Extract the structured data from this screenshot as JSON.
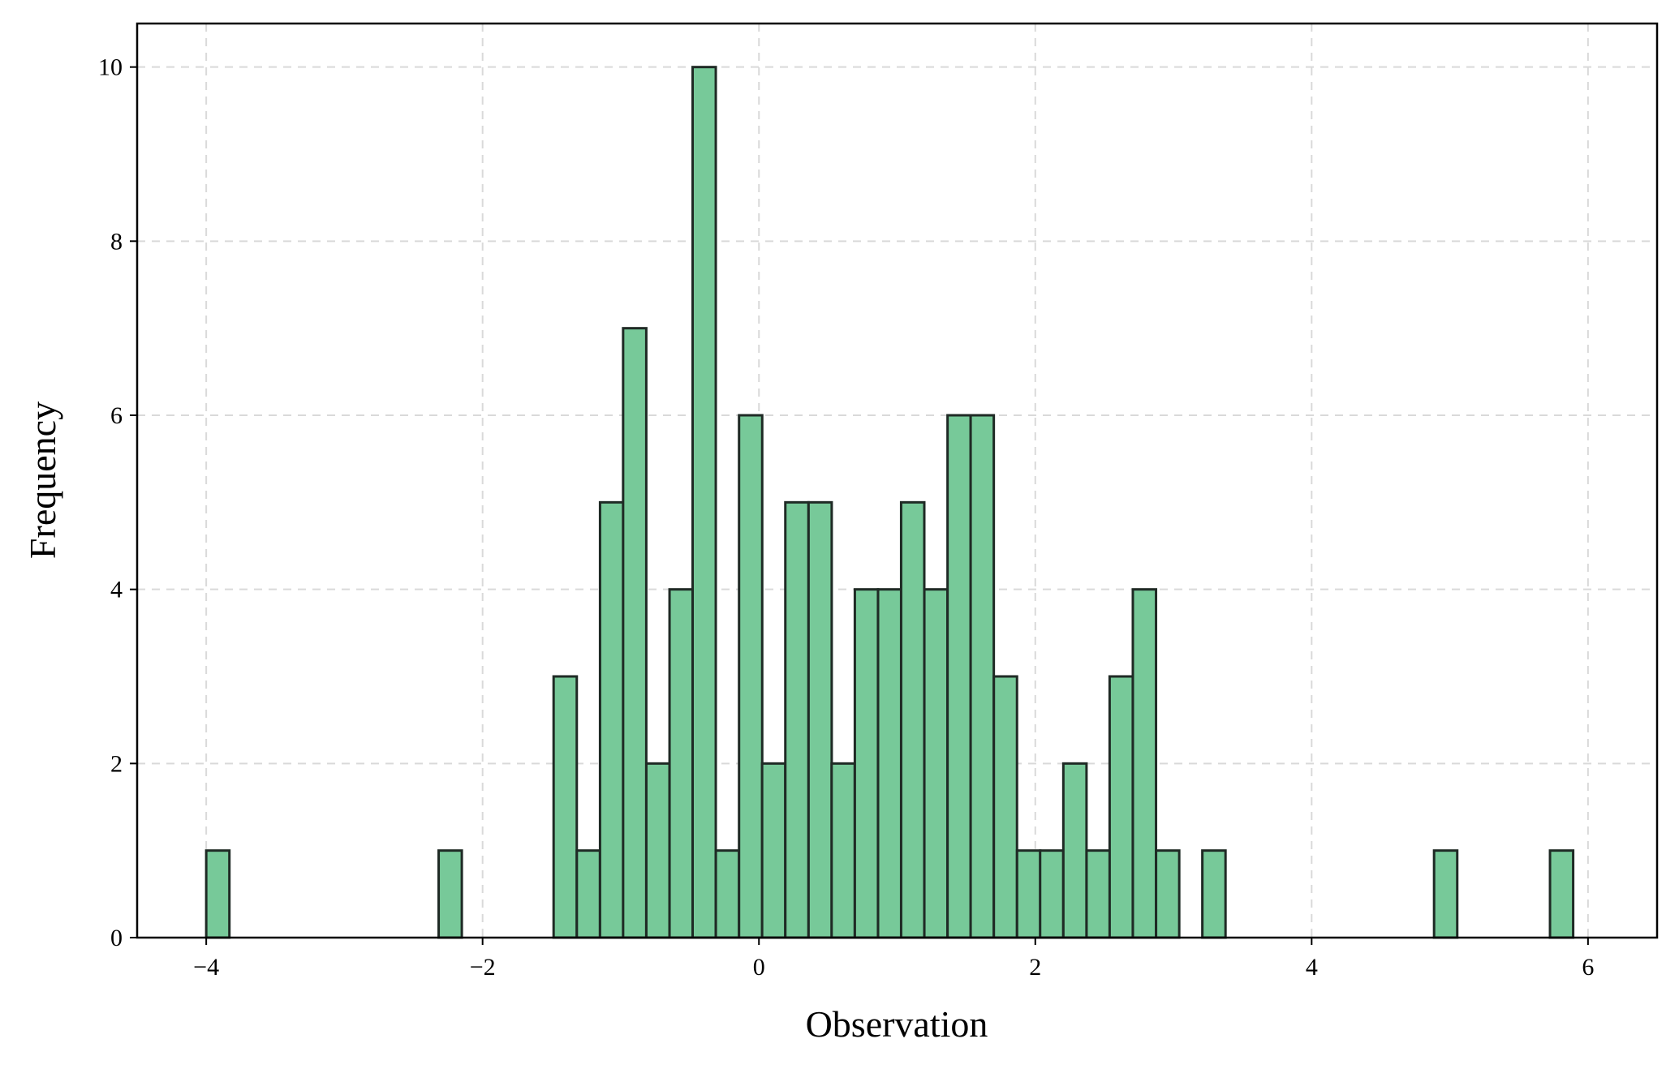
{
  "chart_data": {
    "type": "bar",
    "histogram": true,
    "xlabel": "Observation",
    "ylabel": "Frequency",
    "xlim": [
      -4.5,
      6.5
    ],
    "ylim": [
      0,
      10.5
    ],
    "xticks": [
      -4,
      -2,
      0,
      2,
      4,
      6
    ],
    "xtick_labels": [
      "−4",
      "−2",
      "0",
      "2",
      "4",
      "6"
    ],
    "yticks": [
      0,
      2,
      4,
      6,
      8,
      10
    ],
    "ytick_labels": [
      "0",
      "2",
      "4",
      "6",
      "8",
      "10"
    ],
    "grid": true,
    "bar_color": "#77c999",
    "edge_color": "#1f2a25",
    "bin_width": 0.1677,
    "bins": [
      {
        "x0": -4.0,
        "count": 1
      },
      {
        "x0": -2.318,
        "count": 1
      },
      {
        "x0": -1.486,
        "count": 3
      },
      {
        "x0": -1.318,
        "count": 1
      },
      {
        "x0": -1.15,
        "count": 5
      },
      {
        "x0": -0.983,
        "count": 7
      },
      {
        "x0": -0.815,
        "count": 2
      },
      {
        "x0": -0.647,
        "count": 4
      },
      {
        "x0": -0.48,
        "count": 10
      },
      {
        "x0": -0.312,
        "count": 1
      },
      {
        "x0": -0.144,
        "count": 6
      },
      {
        "x0": 0.023,
        "count": 2
      },
      {
        "x0": 0.191,
        "count": 5
      },
      {
        "x0": 0.359,
        "count": 5
      },
      {
        "x0": 0.526,
        "count": 2
      },
      {
        "x0": 0.694,
        "count": 4
      },
      {
        "x0": 0.862,
        "count": 4
      },
      {
        "x0": 1.029,
        "count": 5
      },
      {
        "x0": 1.197,
        "count": 4
      },
      {
        "x0": 1.365,
        "count": 6
      },
      {
        "x0": 1.532,
        "count": 6
      },
      {
        "x0": 1.7,
        "count": 3
      },
      {
        "x0": 1.868,
        "count": 1
      },
      {
        "x0": 2.035,
        "count": 1
      },
      {
        "x0": 2.203,
        "count": 2
      },
      {
        "x0": 2.371,
        "count": 1
      },
      {
        "x0": 2.538,
        "count": 3
      },
      {
        "x0": 2.706,
        "count": 4
      },
      {
        "x0": 2.874,
        "count": 1
      },
      {
        "x0": 3.209,
        "count": 1
      },
      {
        "x0": 4.886,
        "count": 1
      },
      {
        "x0": 5.725,
        "count": 1
      }
    ]
  }
}
